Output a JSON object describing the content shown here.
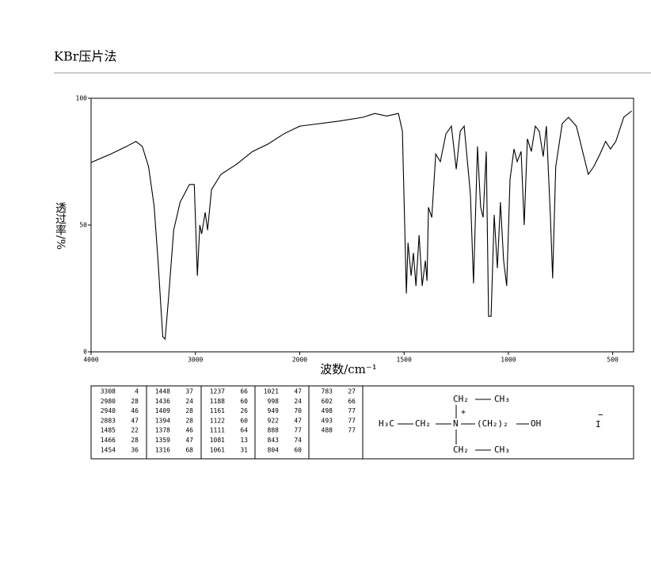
{
  "header": {
    "title": "KBr压片法"
  },
  "chart_data": {
    "type": "line",
    "xlabel": "波数/cm⁻¹",
    "ylabel": "透过率/%",
    "x": [
      4000,
      3811,
      3660,
      3570,
      3509,
      3449,
      3396,
      3358,
      3313,
      3290,
      3260,
      3208,
      3147,
      3057,
      3011,
      2981,
      2958,
      2940,
      2906,
      2883,
      2845,
      2755,
      2604,
      2453,
      2302,
      2151,
      2000,
      1811,
      1697,
      1640,
      1583,
      1527,
      1508,
      1489,
      1481,
      1466,
      1455,
      1443,
      1428,
      1413,
      1398,
      1390,
      1383,
      1367,
      1348,
      1326,
      1299,
      1273,
      1250,
      1231,
      1212,
      1193,
      1182,
      1167,
      1148,
      1133,
      1121,
      1106,
      1095,
      1083,
      1068,
      1053,
      1038,
      1023,
      1008,
      992,
      973,
      958,
      939,
      924,
      909,
      890,
      871,
      852,
      833,
      818,
      799,
      788,
      773,
      742,
      712,
      674,
      644,
      617,
      591,
      561,
      534,
      511,
      485,
      447,
      409
    ],
    "series": [
      {
        "name": "transmittance",
        "color": "#000000",
        "values": [
          74.7,
          78,
          81,
          83,
          81,
          73,
          57.5,
          35.6,
          6,
          5,
          20,
          48,
          59,
          66,
          66,
          30,
          50,
          46.5,
          55,
          48,
          64,
          70,
          74,
          79,
          82,
          86,
          89,
          91,
          92.5,
          94,
          93,
          94,
          87,
          23,
          43,
          30,
          39,
          26,
          46,
          26,
          36,
          28,
          57,
          53,
          78,
          75,
          86,
          89,
          72,
          87,
          89,
          72,
          62,
          27,
          81,
          57,
          53,
          79,
          14,
          14,
          54,
          33,
          59,
          36,
          26,
          68,
          80,
          75,
          79,
          50,
          84,
          79,
          89,
          87,
          77,
          89,
          54,
          29,
          73,
          90,
          92.5,
          89,
          79,
          70,
          73,
          78,
          83,
          80,
          83,
          92.5,
          95
        ]
      }
    ],
    "xlim": [
      4000,
      400
    ],
    "x_scale_break": 2000,
    "xticks": [
      4000,
      3000,
      2000,
      1500,
      1000,
      500
    ],
    "ylim": [
      0,
      100
    ],
    "yticks": [
      0,
      50,
      100
    ]
  },
  "peak_table": {
    "columns": [
      [
        [
          3308,
          4
        ],
        [
          2980,
          28
        ],
        [
          2940,
          46
        ],
        [
          2883,
          47
        ],
        [
          1485,
          22
        ],
        [
          1466,
          28
        ],
        [
          1454,
          36
        ]
      ],
      [
        [
          1448,
          37
        ],
        [
          1436,
          24
        ],
        [
          1409,
          28
        ],
        [
          1394,
          28
        ],
        [
          1378,
          46
        ],
        [
          1359,
          47
        ],
        [
          1316,
          68
        ]
      ],
      [
        [
          1237,
          66
        ],
        [
          1188,
          60
        ],
        [
          1161,
          26
        ],
        [
          1122,
          60
        ],
        [
          1111,
          64
        ],
        [
          1081,
          13
        ],
        [
          1061,
          31
        ]
      ],
      [
        [
          1021,
          47
        ],
        [
          998,
          24
        ],
        [
          949,
          70
        ],
        [
          922,
          47
        ],
        [
          888,
          77
        ],
        [
          843,
          74
        ],
        [
          804,
          60
        ]
      ],
      [
        [
          783,
          27
        ],
        [
          602,
          66
        ],
        [
          498,
          77
        ],
        [
          493,
          77
        ],
        [
          488,
          77
        ]
      ]
    ]
  },
  "structure": {
    "top_ch2": "CH₂",
    "top_ch3": "CH₃",
    "left_ch3": "H₃C",
    "left_ch2": "CH₂",
    "n": "N",
    "charge": "+",
    "chain": "(CH₂)₂",
    "oh": "OH",
    "bottom_ch2": "CH₂",
    "bottom_ch3": "CH₃",
    "anion": "I",
    "anion_charge": "−"
  }
}
